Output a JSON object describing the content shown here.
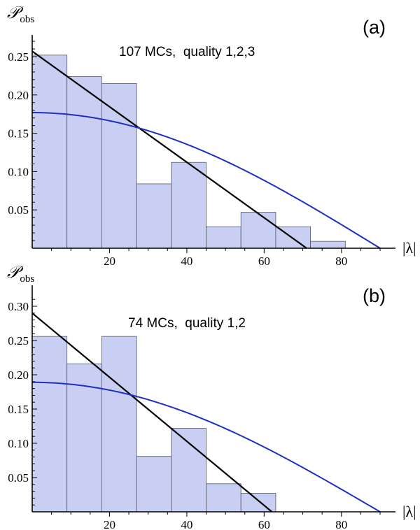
{
  "chart_data": [
    {
      "type": "bar",
      "panel_label": "(a)",
      "annotation": "107 MCs,  quality 1,2,3",
      "ylabel_main": "𝒫",
      "ylabel_sub": "obs",
      "xlabel": "|λ|",
      "xlim": [
        0,
        90
      ],
      "ylim": [
        0,
        0.27
      ],
      "xticks": [
        20,
        40,
        60,
        80
      ],
      "yticks": [
        0.05,
        0.1,
        0.15,
        0.2,
        0.25
      ],
      "ytick_labels": [
        "0.05",
        "0.10",
        "0.15",
        "0.20",
        "0.25"
      ],
      "bin_edges": [
        0,
        9,
        18,
        27,
        36,
        45,
        54,
        63,
        72,
        81
      ],
      "values": [
        0.252,
        0.224,
        0.215,
        0.084,
        0.112,
        0.028,
        0.047,
        0.028,
        0.009
      ],
      "bar_fill": "#c8cff3",
      "bar_stroke": "#555566",
      "lines": [
        {
          "kind": "linear",
          "color": "#000000",
          "points": [
            [
              0,
              0.257
            ],
            [
              71,
              0
            ]
          ]
        },
        {
          "kind": "cosine",
          "color": "#1f2fbf",
          "amplitude": 0.177,
          "zero_at": 90
        }
      ]
    },
    {
      "type": "bar",
      "panel_label": "(b)",
      "annotation": "74 MCs,  quality 1,2",
      "ylabel_main": "𝒫",
      "ylabel_sub": "obs",
      "xlabel": "|λ|",
      "xlim": [
        0,
        90
      ],
      "ylim": [
        0,
        0.31
      ],
      "xticks": [
        20,
        40,
        60,
        80
      ],
      "yticks": [
        0.05,
        0.1,
        0.15,
        0.2,
        0.25,
        0.3
      ],
      "ytick_labels": [
        "0.05",
        "0.10",
        "0.15",
        "0.20",
        "0.25",
        "0.30"
      ],
      "bin_edges": [
        0,
        9,
        18,
        27,
        36,
        45,
        54,
        63
      ],
      "values": [
        0.256,
        0.216,
        0.256,
        0.081,
        0.122,
        0.041,
        0.027
      ],
      "bar_fill": "#c8cff3",
      "bar_stroke": "#555566",
      "lines": [
        {
          "kind": "linear",
          "color": "#000000",
          "points": [
            [
              0,
              0.29
            ],
            [
              62,
              0
            ]
          ]
        },
        {
          "kind": "cosine",
          "color": "#1f2fbf",
          "amplitude": 0.189,
          "zero_at": 90
        }
      ]
    }
  ]
}
